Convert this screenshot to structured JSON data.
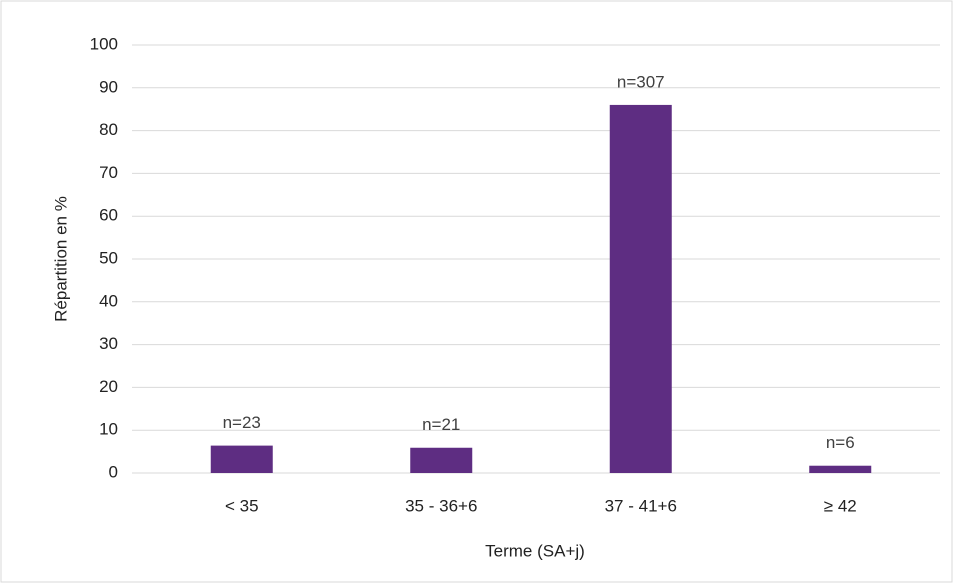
{
  "chart_data": {
    "type": "bar",
    "categories": [
      "< 35",
      "35 - 36+6",
      "37 - 41+6",
      "≥ 42"
    ],
    "values": [
      6.4,
      5.9,
      86.0,
      1.7
    ],
    "annotations": [
      "n=23",
      "n=21",
      "n=307",
      "n=6"
    ],
    "color": "#5e2d82",
    "x_label": "Terme (SA+j)",
    "y_label": "Répartition en %",
    "ylim": [
      0,
      100
    ],
    "yticks": [
      0,
      10,
      20,
      30,
      40,
      50,
      60,
      70,
      80,
      90,
      100
    ],
    "grid": true
  }
}
